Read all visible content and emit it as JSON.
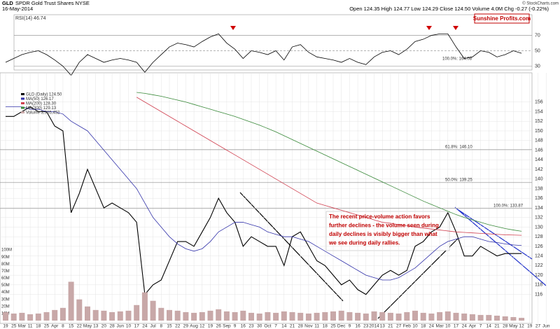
{
  "header": {
    "symbol": "GLD",
    "name": "SPDR Gold Trust Shares NYSE",
    "date": "16-May-2014",
    "quote": "Open 124.35 High 124.77 Low 124.29 Close 124.50 Volume 4.0M Chg -0.27 (-0.22%)",
    "copyright": "© StockCharts.com",
    "logo": "Sunshine Profits.com"
  },
  "chart_data": [
    {
      "type": "line",
      "title": "RSI(14) 46.74",
      "note": "100.0%: 164.08",
      "ylim": [
        25,
        96
      ],
      "yticks": [
        30,
        50,
        70
      ],
      "series": [
        {
          "name": "RSI(14)",
          "color": "#000000",
          "values": [
            35,
            40,
            45,
            48,
            50,
            45,
            38,
            30,
            18,
            35,
            45,
            40,
            35,
            38,
            40,
            38,
            35,
            22,
            35,
            45,
            55,
            60,
            58,
            55,
            62,
            68,
            72,
            60,
            52,
            40,
            50,
            48,
            45,
            50,
            38,
            55,
            58,
            48,
            42,
            40,
            38,
            35,
            40,
            35,
            32,
            42,
            48,
            50,
            45,
            52,
            62,
            65,
            70,
            72,
            72,
            55,
            40,
            42,
            50,
            48,
            42,
            45,
            50,
            46.74,
            null,
            null,
            null
          ]
        }
      ]
    },
    {
      "type": "line",
      "categories": [
        "19",
        "25",
        "Mar",
        "11",
        "18",
        "25",
        "Apr",
        "8",
        "15",
        "22",
        "May",
        "13",
        "20",
        "28",
        "Jun",
        "10",
        "17",
        "24",
        "Jul",
        "8",
        "15",
        "22",
        "29",
        "Aug",
        "12",
        "19",
        "26",
        "Sep",
        "9",
        "16",
        "23",
        "30",
        "Oct",
        "7",
        "14",
        "21",
        "28",
        "Nov",
        "11",
        "18",
        "25",
        "Dec",
        "9",
        "16",
        "23",
        "2014",
        "13",
        "21",
        "27",
        "Feb",
        "10",
        "18",
        "24",
        "Mar",
        "10",
        "17",
        "24",
        "Apr",
        "7",
        "14",
        "21",
        "28",
        "May",
        "12",
        "19",
        "27",
        "Jun"
      ],
      "ylim": [
        111,
        158
      ],
      "yticks": [
        116,
        118,
        120,
        122,
        124,
        126,
        128,
        130,
        132,
        134,
        136,
        138,
        140,
        142,
        144,
        146,
        148,
        150,
        152,
        154,
        156
      ],
      "y2lim": [
        0,
        110000000
      ],
      "y2ticks": [
        {
          "value": 10000000,
          "label": "10M"
        },
        {
          "value": 20000000,
          "label": "20M"
        },
        {
          "value": 30000000,
          "label": "30M"
        },
        {
          "value": 40000000,
          "label": "40M"
        },
        {
          "value": 50000000,
          "label": "50M"
        },
        {
          "value": 60000000,
          "label": "60M"
        },
        {
          "value": 70000000,
          "label": "70M"
        },
        {
          "value": 80000000,
          "label": "80M"
        },
        {
          "value": 90000000,
          "label": "90M"
        },
        {
          "value": 100000000,
          "label": "100M"
        }
      ],
      "series": [
        {
          "name": "GLD (Daily) 124.50",
          "color": "#000000",
          "values": [
            153,
            153,
            154,
            155,
            154,
            154,
            151,
            150,
            133,
            137,
            142,
            138,
            134,
            135,
            134,
            133,
            131,
            116,
            118,
            119,
            123,
            127,
            127,
            126,
            129,
            132,
            136,
            133,
            131,
            126,
            128,
            127,
            126,
            126,
            122,
            128,
            129,
            126,
            123,
            122,
            120,
            118,
            119,
            117,
            116,
            118,
            120,
            121,
            120,
            121,
            126,
            127,
            129,
            130,
            133,
            129,
            124,
            124,
            126,
            125,
            124,
            124.5,
            124.5,
            124.5,
            null,
            null,
            null
          ]
        },
        {
          "name": "MA(50) 126.17",
          "color": "#3333aa",
          "values": [
            155,
            155,
            155,
            154.5,
            154.5,
            154,
            154,
            153.5,
            152,
            151,
            150,
            148,
            146,
            144,
            142,
            140,
            138,
            135,
            132,
            130,
            128,
            126.5,
            125.5,
            125,
            125.5,
            127,
            129,
            130,
            131,
            131,
            130.5,
            130,
            129,
            128.5,
            128,
            128,
            127.5,
            127,
            126,
            125,
            124,
            123,
            122,
            121,
            120,
            119.5,
            119,
            119,
            119.5,
            120.5,
            121.5,
            123,
            124.5,
            126,
            127,
            127.5,
            128,
            128,
            127.5,
            127,
            126.8,
            126.5,
            126.3,
            126.17,
            null,
            null,
            null
          ]
        },
        {
          "name": "MA(200) 128.30",
          "color": "#d04050",
          "values": [
            null,
            null,
            null,
            null,
            null,
            null,
            null,
            null,
            null,
            null,
            null,
            null,
            null,
            null,
            null,
            null,
            157,
            156,
            155,
            154,
            153,
            152,
            151,
            150,
            149,
            148,
            147,
            146,
            145,
            144,
            143,
            142,
            141,
            140,
            139,
            138,
            137,
            136,
            135,
            134.5,
            134,
            133.5,
            133,
            132.5,
            132,
            131.5,
            131,
            130.8,
            130.5,
            130.3,
            130,
            129.8,
            129.6,
            129.4,
            129.2,
            129,
            128.9,
            128.8,
            128.7,
            128.6,
            128.5,
            128.4,
            128.35,
            128.3,
            null,
            null,
            null
          ]
        },
        {
          "name": "MA(300) 129.13",
          "color": "#3a8a3a",
          "values": [
            null,
            null,
            null,
            null,
            null,
            null,
            null,
            null,
            null,
            null,
            null,
            null,
            null,
            null,
            null,
            null,
            158,
            157.8,
            157.5,
            157.2,
            156.8,
            156.4,
            156,
            155.5,
            155,
            154.5,
            154,
            153.5,
            153,
            152.4,
            151.8,
            151.2,
            150.5,
            149.8,
            149,
            148.2,
            147.4,
            146.6,
            145.8,
            145,
            144.2,
            143.4,
            142.6,
            141.8,
            141,
            140.2,
            139.4,
            138.6,
            137.8,
            137,
            136.2,
            135.4,
            134.7,
            134,
            133.3,
            132.6,
            132,
            131.5,
            131,
            130.5,
            130.1,
            129.7,
            129.4,
            129.13,
            null,
            null,
            null
          ]
        },
        {
          "name": "Volume 3,905,452",
          "color": "#c8a8a8",
          "type": "bar",
          "axis": "y2",
          "values": [
            12000000,
            10000000,
            11000000,
            9000000,
            10000000,
            12000000,
            15000000,
            18000000,
            55000000,
            30000000,
            20000000,
            15000000,
            14000000,
            12000000,
            13000000,
            14000000,
            22000000,
            40000000,
            28000000,
            18000000,
            15000000,
            14000000,
            12000000,
            11000000,
            12000000,
            14000000,
            16000000,
            13000000,
            12000000,
            14000000,
            11000000,
            10000000,
            12000000,
            11000000,
            13000000,
            12000000,
            11000000,
            10000000,
            11000000,
            12000000,
            13000000,
            14000000,
            12000000,
            11000000,
            10000000,
            13000000,
            12000000,
            11000000,
            10000000,
            12000000,
            14000000,
            11000000,
            10000000,
            12000000,
            13000000,
            11000000,
            10000000,
            9000000,
            8000000,
            8000000,
            7000000,
            6000000,
            5000000,
            3905452,
            null,
            null,
            null
          ]
        }
      ],
      "annotations": [
        {
          "text": "61.8%: 146.10",
          "value": 146.1
        },
        {
          "text": "50.0%: 139.25",
          "value": 139.25
        },
        {
          "text": "100.0%: 133.87",
          "value": 133.87
        }
      ],
      "callout": [
        "The recent price-volume action favors",
        "further declines - the volume seen during",
        "daily declines is visibly bigger than what",
        "we see during daily rallies."
      ]
    }
  ]
}
